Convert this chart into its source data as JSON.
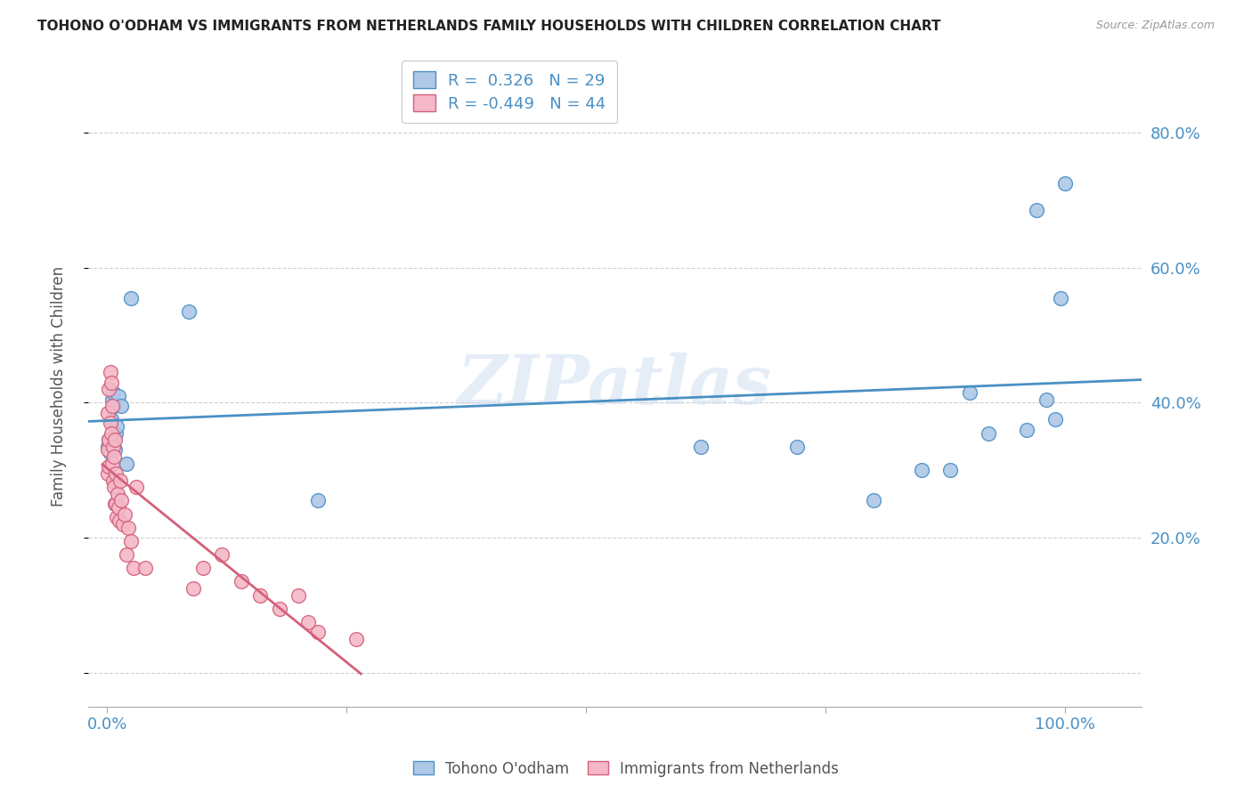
{
  "title": "TOHONO O'ODHAM VS IMMIGRANTS FROM NETHERLANDS FAMILY HOUSEHOLDS WITH CHILDREN CORRELATION CHART",
  "source": "Source: ZipAtlas.com",
  "ylabel": "Family Households with Children",
  "watermark": "ZIPatlas",
  "blue_R": 0.326,
  "blue_N": 29,
  "pink_R": -0.449,
  "pink_N": 44,
  "blue_color": "#aec8e8",
  "pink_color": "#f4b8c8",
  "blue_line_color": "#4a90c4",
  "pink_line_color": "#d4607a",
  "blue_scatter_x": [
    0.001,
    0.002,
    0.003,
    0.004,
    0.005,
    0.006,
    0.007,
    0.008,
    0.009,
    0.01,
    0.012,
    0.015,
    0.02,
    0.025,
    0.085,
    0.22,
    0.62,
    0.72,
    0.8,
    0.85,
    0.88,
    0.9,
    0.92,
    0.96,
    0.97,
    0.98,
    0.99,
    0.995,
    1.0
  ],
  "blue_scatter_y": [
    0.335,
    0.345,
    0.325,
    0.375,
    0.405,
    0.415,
    0.395,
    0.33,
    0.355,
    0.365,
    0.41,
    0.395,
    0.31,
    0.555,
    0.535,
    0.255,
    0.335,
    0.335,
    0.255,
    0.3,
    0.3,
    0.415,
    0.355,
    0.36,
    0.685,
    0.405,
    0.375,
    0.555,
    0.725
  ],
  "pink_scatter_x": [
    0.001,
    0.001,
    0.001,
    0.002,
    0.002,
    0.002,
    0.003,
    0.003,
    0.004,
    0.004,
    0.005,
    0.005,
    0.006,
    0.006,
    0.007,
    0.007,
    0.008,
    0.008,
    0.009,
    0.009,
    0.01,
    0.011,
    0.012,
    0.013,
    0.014,
    0.015,
    0.016,
    0.018,
    0.02,
    0.022,
    0.025,
    0.028,
    0.03,
    0.04,
    0.09,
    0.1,
    0.12,
    0.14,
    0.16,
    0.18,
    0.2,
    0.21,
    0.22,
    0.26
  ],
  "pink_scatter_y": [
    0.295,
    0.33,
    0.385,
    0.305,
    0.345,
    0.42,
    0.37,
    0.445,
    0.355,
    0.43,
    0.31,
    0.395,
    0.285,
    0.335,
    0.275,
    0.32,
    0.25,
    0.345,
    0.25,
    0.295,
    0.23,
    0.265,
    0.245,
    0.225,
    0.285,
    0.255,
    0.22,
    0.235,
    0.175,
    0.215,
    0.195,
    0.155,
    0.275,
    0.155,
    0.125,
    0.155,
    0.175,
    0.135,
    0.115,
    0.095,
    0.115,
    0.075,
    0.06,
    0.05
  ],
  "yticks": [
    0.0,
    0.2,
    0.4,
    0.6,
    0.8
  ],
  "yright_labels": [
    "",
    "20.0%",
    "40.0%",
    "60.0%",
    "80.0%"
  ],
  "ylim": [
    -0.05,
    0.9
  ],
  "xlim": [
    -0.02,
    1.08
  ],
  "blue_line_x_start": -0.02,
  "blue_line_x_end": 1.08,
  "pink_line_x_start": -0.005,
  "pink_line_x_end": 0.265,
  "legend_blue_label": "Tohono O'odham",
  "legend_pink_label": "Immigrants from Netherlands",
  "background_color": "#ffffff",
  "grid_color": "#d0d0d0"
}
